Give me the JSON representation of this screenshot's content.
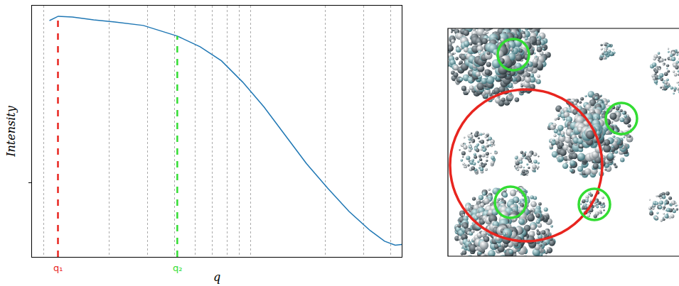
{
  "chart_data": {
    "type": "line",
    "x_label": "q",
    "y_label": "Intensity",
    "log": true,
    "grid": "x",
    "tick_labels": false,
    "xlim": [
      0.0088,
      0.45
    ],
    "ylim": [
      0.038,
      1.0
    ],
    "xticks": [
      0.01,
      0.02,
      0.03,
      0.04,
      0.05,
      0.06,
      0.07,
      0.08,
      0.09,
      0.2,
      0.3,
      0.4
    ],
    "yticks": [
      0.1
    ],
    "x": [
      0.0106,
      0.01163,
      0.01353,
      0.01696,
      0.02127,
      0.02877,
      0.04134,
      0.05265,
      0.06607,
      0.0828,
      0.1038,
      0.1303,
      0.1633,
      0.2048,
      0.257,
      0.322,
      0.375,
      0.42,
      0.45
    ],
    "series": [
      {
        "color": "#1f77b4",
        "values": [
          0.824,
          0.871,
          0.863,
          0.832,
          0.809,
          0.773,
          0.673,
          0.586,
          0.488,
          0.37,
          0.268,
          0.185,
          0.128,
          0.0929,
          0.0686,
          0.0535,
          0.0466,
          0.0443,
          0.0447
        ]
      }
    ],
    "markers": [
      {
        "label": "q₁",
        "x": 0.0116,
        "y": 0.871,
        "color": "#e8251f",
        "line_style": "dashed"
      },
      {
        "label": "q₂",
        "x": 0.0413,
        "y": 0.673,
        "color": "#33dd33",
        "line_style": "dashed"
      }
    ]
  }
}
